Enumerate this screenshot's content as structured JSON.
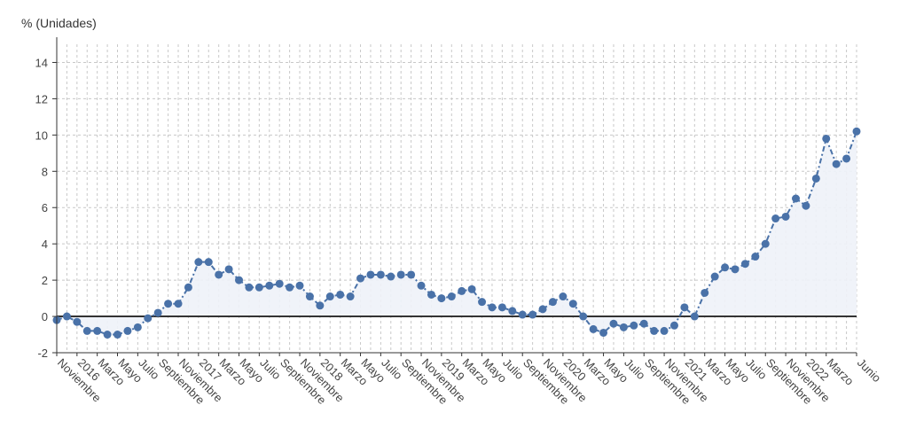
{
  "chart_data": {
    "type": "area",
    "title": "",
    "ylabel": "% (Unidades)",
    "xlabel": "",
    "ylim": [
      -2,
      15
    ],
    "yticks": [
      -2,
      0,
      2,
      4,
      6,
      8,
      10,
      12,
      14
    ],
    "grid": true,
    "x_tick_labels": [
      "Noviembre",
      "2016",
      "Marzo",
      "Mayo",
      "Julio",
      "Septiembre",
      "Noviembre",
      "2017",
      "Marzo",
      "Mayo",
      "Julio",
      "Septiembre",
      "Noviembre",
      "2018",
      "Marzo",
      "Mayo",
      "Julio",
      "Septiembre",
      "Noviembre",
      "2019",
      "Marzo",
      "Mayo",
      "Julio",
      "Septiembre",
      "Noviembre",
      "2020",
      "Marzo",
      "Mayo",
      "Julio",
      "Septiembre",
      "Noviembre",
      "2021",
      "Marzo",
      "Mayo",
      "Julio",
      "Septiembre",
      "Noviembre",
      "2022",
      "Marzo",
      "Junio"
    ],
    "x_tick_index": [
      0,
      2,
      4,
      6,
      8,
      10,
      12,
      14,
      16,
      18,
      20,
      22,
      24,
      26,
      28,
      30,
      32,
      34,
      36,
      38,
      40,
      42,
      44,
      46,
      48,
      50,
      52,
      54,
      56,
      58,
      60,
      62,
      64,
      66,
      68,
      70,
      72,
      74,
      76,
      79
    ],
    "series": [
      {
        "name": "% (Unidades)",
        "values": [
          -0.2,
          0.0,
          -0.3,
          -0.8,
          -0.8,
          -1.0,
          -1.0,
          -0.8,
          -0.6,
          -0.1,
          0.2,
          0.7,
          0.7,
          1.6,
          3.0,
          3.0,
          2.3,
          2.6,
          2.0,
          1.6,
          1.6,
          1.7,
          1.8,
          1.6,
          1.7,
          1.1,
          0.6,
          1.1,
          1.2,
          1.1,
          2.1,
          2.3,
          2.3,
          2.2,
          2.3,
          2.3,
          1.7,
          1.2,
          1.0,
          1.1,
          1.4,
          1.5,
          0.8,
          0.5,
          0.5,
          0.3,
          0.1,
          0.1,
          0.4,
          0.8,
          1.1,
          0.7,
          0.0,
          -0.7,
          -0.9,
          -0.4,
          -0.6,
          -0.5,
          -0.4,
          -0.8,
          -0.8,
          -0.5,
          0.5,
          0.0,
          1.3,
          2.2,
          2.7,
          2.6,
          2.9,
          3.3,
          4.0,
          5.4,
          5.5,
          6.5,
          6.1,
          7.6,
          9.8,
          8.4,
          8.7,
          10.2
        ]
      }
    ]
  },
  "colors": {
    "line": "#4a72a8",
    "marker": "#4a72a8",
    "fill": "#eef2f8",
    "grid": "#c8c8c8",
    "zero_line": "#333333",
    "axis": "#333333"
  }
}
